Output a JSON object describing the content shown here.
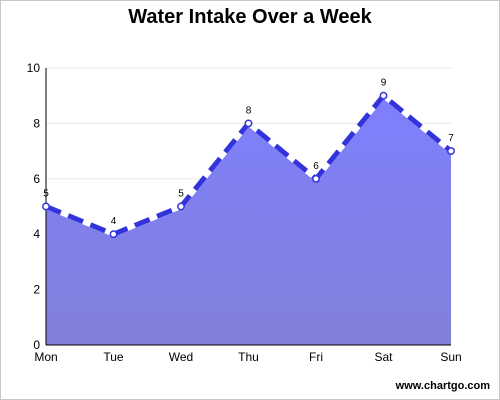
{
  "chart_data": {
    "type": "area",
    "title": "Water Intake Over a Week",
    "categories": [
      "Mon",
      "Tue",
      "Wed",
      "Thu",
      "Fri",
      "Sat",
      "Sun"
    ],
    "series": [
      {
        "values": [
          5,
          4,
          5,
          8,
          6,
          9,
          7
        ]
      }
    ],
    "xlabel": "",
    "ylabel": "",
    "ylim": [
      0,
      10
    ],
    "yticks": [
      0,
      2,
      4,
      6,
      8,
      10
    ],
    "grid": true,
    "line_style": "dashed",
    "colors": {
      "fill_top": "#7f7fff",
      "fill_bottom": "#8080d8",
      "line": "#3333dd",
      "marker_fill": "#ffffff",
      "grid": "#e6e6e6",
      "axis": "#000000"
    }
  },
  "watermark": "www.chartgo.com"
}
